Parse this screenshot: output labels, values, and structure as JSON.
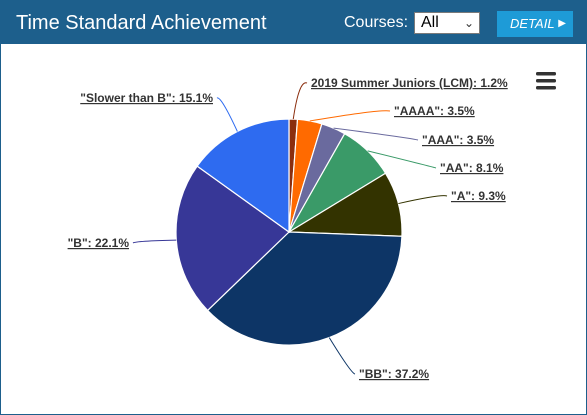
{
  "header": {
    "title": "Time Standard Achievement",
    "courses_label": "Courses:",
    "courses_value": "All",
    "detail_label": "DETAIL"
  },
  "icons": {
    "menu": "hamburger-menu-icon",
    "detail_arrow": "triangle-right-icon",
    "select_arrow": "chevron-down-icon"
  },
  "chart_data": {
    "type": "pie",
    "title": "",
    "slices": [
      {
        "name": "2019 Summer Juniors (LCM)",
        "value": 1.2,
        "label": "2019 Summer Juniors (LCM): 1.2%",
        "color": "#8b2e0e"
      },
      {
        "name": "AAAA",
        "value": 3.5,
        "label": "\"AAAA\": 3.5%",
        "color": "#ff6a00"
      },
      {
        "name": "AAA",
        "value": 3.5,
        "label": "\"AAA\": 3.5%",
        "color": "#6a6a9e"
      },
      {
        "name": "AA",
        "value": 8.1,
        "label": "\"AA\": 8.1%",
        "color": "#3a9a68"
      },
      {
        "name": "A",
        "value": 9.3,
        "label": "\"A\": 9.3%",
        "color": "#333300"
      },
      {
        "name": "BB",
        "value": 37.2,
        "label": "\"BB\": 37.2%",
        "color": "#0d3566"
      },
      {
        "name": "B",
        "value": 22.1,
        "label": "\"B\": 22.1%",
        "color": "#373797"
      },
      {
        "name": "Slower than B",
        "value": 15.1,
        "label": "\"Slower than B\": 15.1%",
        "color": "#2e6bf0"
      }
    ]
  }
}
